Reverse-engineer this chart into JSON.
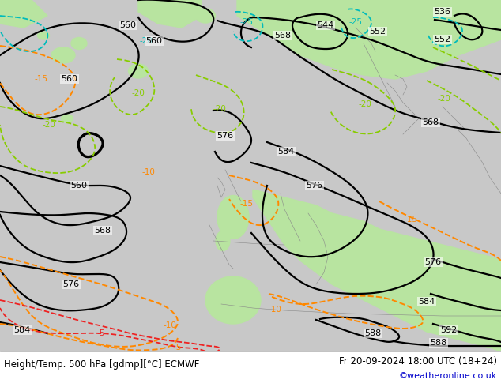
{
  "title_left": "Height/Temp. 500 hPa [gdmp][°C] ECMWF",
  "title_right": "Fr 20-09-2024 18:00 UTC (18+24)",
  "credit": "©weatheronline.co.uk",
  "bg_gray": "#c8c8c8",
  "bg_green": "#b8e4a0",
  "bg_green2": "#c8eab0",
  "text_color_blue": "#0000cc",
  "height_color": "#000000",
  "temp_orange": "#ff8800",
  "temp_green": "#88cc00",
  "temp_cyan": "#00bbbb",
  "temp_red": "#ee2222",
  "figsize": [
    6.34,
    4.9
  ],
  "dpi": 100
}
